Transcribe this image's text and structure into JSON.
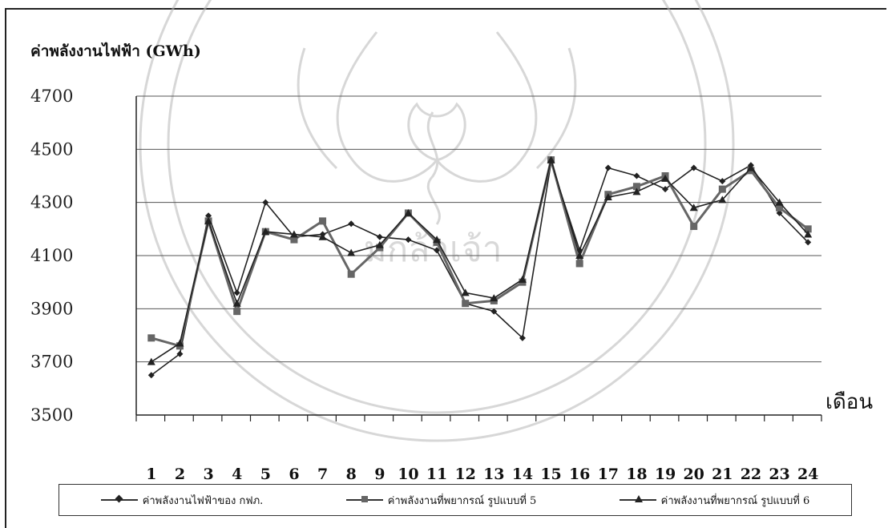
{
  "chart_data": {
    "type": "line",
    "title": "ค่าพลังงานไฟฟ้า (GWh)",
    "xlabel": "เดือน",
    "ylabel": "",
    "ylim": [
      3500,
      4700
    ],
    "yticks": [
      3500,
      3700,
      3900,
      4100,
      4300,
      4500,
      4700
    ],
    "categories": [
      "1",
      "2",
      "3",
      "4",
      "5",
      "6",
      "7",
      "8",
      "9",
      "10",
      "11",
      "12",
      "13",
      "14",
      "15",
      "16",
      "17",
      "18",
      "19",
      "20",
      "21",
      "22",
      "23",
      "24"
    ],
    "grid": "horizontal",
    "legend_position": "bottom",
    "series": [
      {
        "name": "ค่าพลังงานไฟฟ้าของ กฟภ.",
        "color": "#222222",
        "marker": "diamond",
        "values": [
          3650,
          3730,
          4250,
          3960,
          4300,
          4170,
          4180,
          4220,
          4170,
          4160,
          4120,
          3920,
          3890,
          3790,
          4450,
          4120,
          4430,
          4400,
          4350,
          4430,
          4380,
          4440,
          4260,
          4150
        ]
      },
      {
        "name": "ค่าพลังงานที่พยากรณ์ รูปแบบที่ 5",
        "color": "#666666",
        "marker": "square",
        "values": [
          3790,
          3760,
          4230,
          3890,
          4190,
          4160,
          4230,
          4030,
          4130,
          4260,
          4150,
          3920,
          3930,
          4000,
          4460,
          4070,
          4330,
          4360,
          4400,
          4210,
          4350,
          4420,
          4280,
          4200
        ]
      },
      {
        "name": "ค่าพลังงานที่พยากรณ์ รูปแบบที่ 6",
        "color": "#222222",
        "marker": "triangle",
        "values": [
          3700,
          3770,
          4230,
          3920,
          4190,
          4180,
          4170,
          4110,
          4140,
          4260,
          4160,
          3960,
          3940,
          4010,
          4460,
          4100,
          4320,
          4340,
          4390,
          4280,
          4310,
          4430,
          4300,
          4180
        ]
      }
    ]
  }
}
